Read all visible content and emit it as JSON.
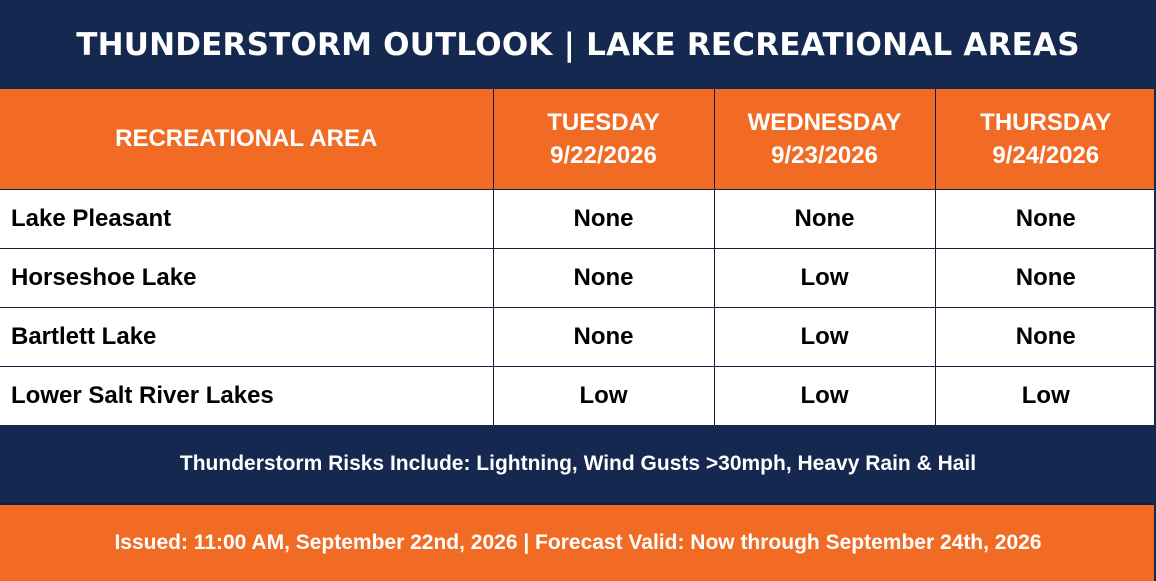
{
  "title": "THUNDERSTORM OUTLOOK | LAKE RECREATIONAL AREAS",
  "table": {
    "area_header": "RECREATIONAL AREA",
    "days": [
      {
        "day": "TUESDAY",
        "date": "9/22/2026"
      },
      {
        "day": "WEDNESDAY",
        "date": "9/23/2026"
      },
      {
        "day": "THURSDAY",
        "date": "9/24/2026"
      }
    ],
    "rows": [
      {
        "area": "Lake Pleasant",
        "risks": [
          "None",
          "None",
          "None"
        ]
      },
      {
        "area": "Horseshoe Lake",
        "risks": [
          "None",
          "Low",
          "None"
        ]
      },
      {
        "area": "Bartlett Lake",
        "risks": [
          "None",
          "Low",
          "None"
        ]
      },
      {
        "area": "Lower Salt River Lakes",
        "risks": [
          "Low",
          "Low",
          "Low"
        ]
      }
    ]
  },
  "risks_note": "Thunderstorm Risks Include: Lightning, Wind Gusts >30mph, Heavy Rain & Hail",
  "issued_note": "Issued: 11:00 AM, September 22nd, 2026 | Forecast Valid: Now through September 24th, 2026",
  "colors": {
    "navy": "#142850",
    "orange": "#f26b24",
    "white": "#ffffff",
    "text": "#000000"
  }
}
